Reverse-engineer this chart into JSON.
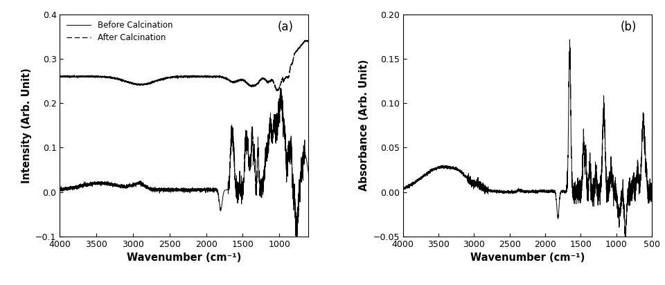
{
  "fig_width": 9.6,
  "fig_height": 4.12,
  "dpi": 100,
  "background_color": "#ffffff",
  "plot_a": {
    "label": "(a)",
    "xlabel": "Wavenumber (cm⁻¹)",
    "ylabel": "Intensity (Arb. Unit)",
    "xlim": [
      4000,
      600
    ],
    "ylim": [
      -0.1,
      0.4
    ],
    "yticks": [
      -0.1,
      0.0,
      0.1,
      0.2,
      0.3,
      0.4
    ],
    "xticks": [
      4000,
      3500,
      3000,
      2500,
      2000,
      1500,
      1000
    ],
    "legend": [
      {
        "label": "Before Calcination",
        "linestyle": "solid"
      },
      {
        "label": "After Calcination",
        "linestyle": "dashed"
      }
    ]
  },
  "plot_b": {
    "label": "(b)",
    "xlabel": "Wavenumber (cm⁻¹)",
    "ylabel": "Absorbance (Arb. Unit)",
    "xlim": [
      4000,
      500
    ],
    "ylim": [
      -0.05,
      0.2
    ],
    "yticks": [
      -0.05,
      0.0,
      0.05,
      0.1,
      0.15,
      0.2
    ],
    "xticks": [
      4000,
      3500,
      3000,
      2500,
      2000,
      1500,
      1000,
      500
    ]
  }
}
